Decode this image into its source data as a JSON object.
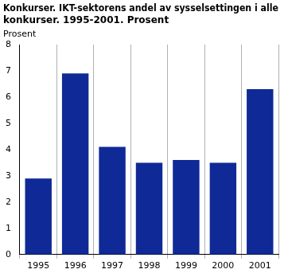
{
  "chart_data": {
    "type": "bar",
    "title": [
      "Konkurser. IKT-sektorens andel av sysselsettingen i alle",
      "konkurser. 1995-2001. Prosent"
    ],
    "ylabel": "Prosent",
    "categories": [
      "1995",
      "1996",
      "1997",
      "1998",
      "1999",
      "2000",
      "2001"
    ],
    "values": [
      2.9,
      6.9,
      4.1,
      3.5,
      3.6,
      3.5,
      6.3
    ],
    "color": "#0f2a96",
    "ylim": [
      0,
      8
    ],
    "yticks": [
      0,
      1,
      2,
      3,
      4,
      5,
      6,
      7,
      8
    ],
    "grid": true
  }
}
